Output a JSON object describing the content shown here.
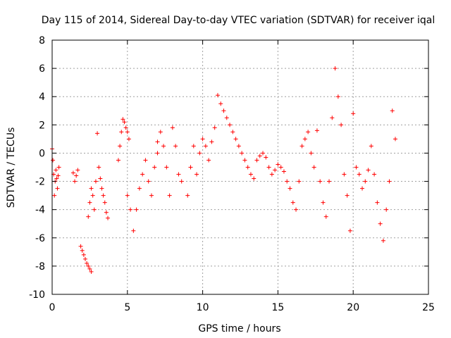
{
  "chart_data": {
    "type": "scatter",
    "title": "Day 115 of 2014, Sidereal Day-to-day VTEC variation (SDTVAR) for receiver iqal",
    "xlabel": "GPS time / hours",
    "ylabel": "SDTVAR / TECUs",
    "xlim": [
      0,
      25
    ],
    "ylim": [
      -10,
      8
    ],
    "xticks": [
      0,
      5,
      10,
      15,
      20,
      25
    ],
    "yticks": [
      -10,
      -8,
      -6,
      -4,
      -2,
      0,
      2,
      4,
      6,
      8
    ],
    "xtick_labels": [
      "0",
      "5",
      "10",
      "15",
      "20",
      "25"
    ],
    "ytick_labels": [
      "-10",
      "-8",
      "-6",
      "-4",
      "-2",
      "0",
      "2",
      "4",
      "6",
      "8"
    ],
    "grid": true,
    "marker": "+",
    "color": "#ff0000",
    "series": [
      {
        "name": "SDTVAR",
        "segments": [
          {
            "x": [
              0.0,
              0.05,
              0.1,
              0.15,
              0.2,
              0.25,
              0.3,
              0.35,
              0.4,
              0.45
            ],
            "y": [
              0.3,
              -0.5,
              -1.5,
              -3.0,
              -2.0,
              -1.2,
              -1.8,
              -2.5,
              -1.6,
              -1.0
            ]
          },
          {
            "x": [
              1.4,
              1.5,
              1.6,
              1.7
            ],
            "y": [
              -1.4,
              -2.0,
              -1.6,
              -1.2
            ]
          },
          {
            "x": [
              1.9,
              2.0,
              2.1,
              2.2,
              2.3,
              2.4,
              2.5,
              2.6
            ],
            "y": [
              -6.6,
              -6.9,
              -7.2,
              -7.5,
              -7.8,
              -8.0,
              -8.2,
              -8.4
            ]
          },
          {
            "x": [
              2.4,
              2.5,
              2.6,
              2.7,
              2.8,
              2.9
            ],
            "y": [
              -4.5,
              -3.5,
              -2.5,
              -3.0,
              -4.0,
              -2.0
            ]
          },
          {
            "x": [
              3.0
            ],
            "y": [
              1.4
            ]
          },
          {
            "x": [
              3.1,
              3.2,
              3.3,
              3.4,
              3.5,
              3.6,
              3.7
            ],
            "y": [
              -1.0,
              -1.8,
              -2.5,
              -3.0,
              -3.5,
              -4.2,
              -4.6
            ]
          },
          {
            "x": [
              4.4,
              4.5,
              4.6,
              4.7,
              4.8,
              4.9,
              5.0,
              5.1
            ],
            "y": [
              -0.5,
              0.5,
              1.5,
              2.4,
              2.2,
              1.8,
              1.5,
              1.0
            ]
          },
          {
            "x": [
              5.0,
              5.2,
              5.4,
              5.6,
              5.8,
              6.0,
              6.2,
              6.4,
              6.6,
              6.8,
              7.0
            ],
            "y": [
              -3.0,
              -4.0,
              -5.5,
              -4.0,
              -2.5,
              -1.5,
              -0.5,
              -2.0,
              -3.0,
              -1.0,
              0.0
            ]
          },
          {
            "x": [
              7.0,
              7.2,
              7.4,
              7.6,
              7.8,
              8.0,
              8.2,
              8.4,
              8.6
            ],
            "y": [
              0.8,
              1.5,
              0.5,
              -1.0,
              -3.0,
              1.8,
              0.5,
              -1.5,
              -2.0
            ]
          },
          {
            "x": [
              9.0,
              9.2,
              9.4,
              9.6,
              9.8,
              10.0,
              10.2,
              10.4,
              10.6,
              10.8,
              11.0
            ],
            "y": [
              -3.0,
              -1.0,
              0.5,
              -1.5,
              0.0,
              1.0,
              0.5,
              -0.5,
              0.8,
              1.8,
              4.1
            ]
          },
          {
            "x": [
              11.2,
              11.4,
              11.6,
              11.8,
              12.0,
              12.2,
              12.4,
              12.6,
              12.8,
              13.0,
              13.2,
              13.4
            ],
            "y": [
              3.5,
              3.0,
              2.5,
              2.0,
              1.5,
              1.0,
              0.5,
              0.0,
              -0.5,
              -1.0,
              -1.5,
              -1.8
            ]
          },
          {
            "x": [
              13.6,
              13.8,
              14.0,
              14.2,
              14.4,
              14.6,
              14.8,
              15.0,
              15.2,
              15.4
            ],
            "y": [
              -0.5,
              -0.2,
              0.0,
              -0.3,
              -1.0,
              -1.5,
              -1.2,
              -0.8,
              -1.0,
              -1.3
            ]
          },
          {
            "x": [
              15.6,
              15.8,
              16.0,
              16.2,
              16.4,
              16.6,
              16.8,
              17.0,
              17.2,
              17.4,
              17.6
            ],
            "y": [
              -2.0,
              -2.5,
              -3.5,
              -4.0,
              -2.0,
              0.5,
              1.0,
              1.5,
              0.0,
              -1.0,
              1.6
            ]
          },
          {
            "x": [
              17.8,
              18.0,
              18.2,
              18.4,
              18.6,
              18.8,
              19.0,
              19.2,
              19.4,
              19.6,
              19.8,
              20.0
            ],
            "y": [
              -2.0,
              -3.5,
              -4.5,
              -2.0,
              2.5,
              6.0,
              4.0,
              2.0,
              -1.5,
              -3.0,
              -5.5,
              2.8
            ]
          },
          {
            "x": [
              20.2,
              20.4,
              20.6,
              20.8,
              21.0
            ],
            "y": [
              -1.0,
              -1.5,
              -2.5,
              -2.0,
              -1.2
            ]
          },
          {
            "x": [
              21.2,
              21.4,
              21.6,
              21.8,
              22.0,
              22.2,
              22.4,
              22.6,
              22.8
            ],
            "y": [
              0.5,
              -1.5,
              -3.5,
              -5.0,
              -6.2,
              -4.0,
              -2.0,
              3.0,
              1.0
            ]
          }
        ]
      }
    ]
  }
}
